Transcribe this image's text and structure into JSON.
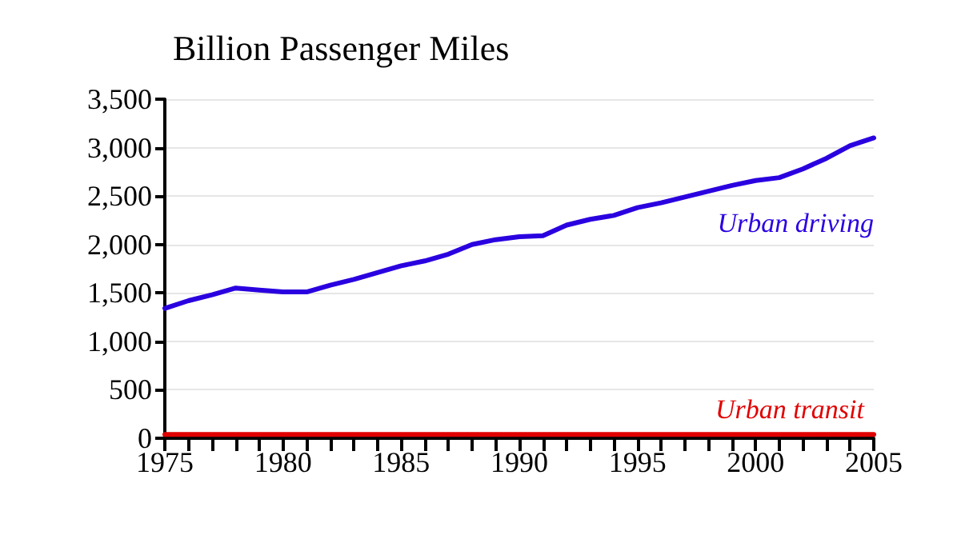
{
  "chart_data": {
    "type": "line",
    "title": "Billion Passenger Miles",
    "x": [
      1975,
      1976,
      1977,
      1978,
      1979,
      1980,
      1981,
      1982,
      1983,
      1984,
      1985,
      1986,
      1987,
      1988,
      1989,
      1990,
      1991,
      1992,
      1993,
      1994,
      1995,
      1996,
      1997,
      1998,
      1999,
      2000,
      2001,
      2002,
      2003,
      2004,
      2005
    ],
    "series": [
      {
        "name": "Urban driving",
        "color": "#2a00e0",
        "values": [
          1340,
          1420,
          1480,
          1550,
          1530,
          1510,
          1510,
          1580,
          1640,
          1710,
          1780,
          1830,
          1900,
          2000,
          2050,
          2080,
          2090,
          2200,
          2260,
          2300,
          2380,
          2430,
          2490,
          2550,
          2610,
          2660,
          2690,
          2780,
          2890,
          3020,
          3100
        ]
      },
      {
        "name": "Urban transit",
        "color": "#e00000",
        "values": [
          40,
          40,
          40,
          40,
          40,
          40,
          40,
          40,
          40,
          40,
          40,
          40,
          40,
          40,
          40,
          40,
          40,
          40,
          40,
          40,
          40,
          40,
          40,
          40,
          40,
          40,
          40,
          40,
          40,
          40,
          40
        ]
      }
    ],
    "xlim": [
      1975,
      2005
    ],
    "xticks": [
      1975,
      {
        "value": 1976,
        "label": null
      },
      {
        "value": 1977,
        "label": null
      },
      {
        "value": 1978,
        "label": null
      },
      {
        "value": 1979,
        "label": null
      },
      1980,
      {
        "value": 1981,
        "label": null
      },
      {
        "value": 1982,
        "label": null
      },
      {
        "value": 1983,
        "label": null
      },
      {
        "value": 1984,
        "label": null
      },
      1985,
      {
        "value": 1986,
        "label": null
      },
      {
        "value": 1987,
        "label": null
      },
      {
        "value": 1988,
        "label": null
      },
      {
        "value": 1989,
        "label": null
      },
      1990,
      {
        "value": 1991,
        "label": null
      },
      {
        "value": 1992,
        "label": null
      },
      {
        "value": 1993,
        "label": null
      },
      {
        "value": 1994,
        "label": null
      },
      1995,
      {
        "value": 1996,
        "label": null
      },
      {
        "value": 1997,
        "label": null
      },
      {
        "value": 1998,
        "label": null
      },
      {
        "value": 1999,
        "label": null
      },
      2000,
      {
        "value": 2001,
        "label": null
      },
      {
        "value": 2002,
        "label": null
      },
      {
        "value": 2003,
        "label": null
      },
      {
        "value": 2004,
        "label": null
      },
      2005
    ],
    "ylim": [
      0,
      3500
    ],
    "yticks": [
      0,
      500,
      {
        "value": 1000,
        "label": "1,000"
      },
      {
        "value": 1500,
        "label": "1,500"
      },
      {
        "value": 2000,
        "label": "2,000"
      },
      {
        "value": 2500,
        "label": "2,500"
      },
      {
        "value": 3000,
        "label": "3,000"
      },
      {
        "value": 3500,
        "label": "3,500"
      }
    ],
    "grid": "y",
    "legend": false,
    "marker": "none",
    "line_style": "solid"
  }
}
